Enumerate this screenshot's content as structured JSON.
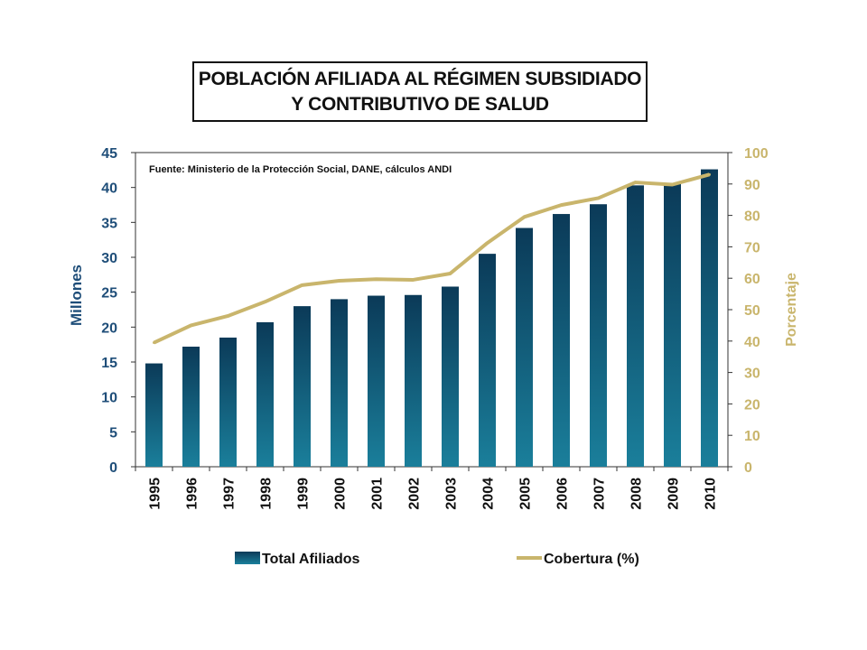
{
  "title_lines": [
    "POBLACIÓN AFILIADA AL RÉGIMEN SUBSIDIADO",
    "Y CONTRIBUTIVO DE SALUD"
  ],
  "colors": {
    "bar_top": "#0b3a58",
    "bar_bottom": "#1a7f9b",
    "line": "#c9b56c",
    "left_axis": "#1f4e79",
    "right_axis": "#c9b56c"
  },
  "chart_data": {
    "type": "bar",
    "title": "POBLACIÓN AFILIADA AL RÉGIMEN SUBSIDIADO Y CONTRIBUTIVO DE SALUD",
    "annotation": "Fuente: Ministerio de la Protección Social, DANE, cálculos ANDI",
    "categories": [
      "1995",
      "1996",
      "1997",
      "1998",
      "1999",
      "2000",
      "2001",
      "2002",
      "2003",
      "2004",
      "2005",
      "2006",
      "2007",
      "2008",
      "2009",
      "2010"
    ],
    "series": [
      {
        "name": "Total Afiliados",
        "type": "bar",
        "axis": "left",
        "values": [
          14.8,
          17.2,
          18.5,
          20.7,
          23.0,
          24.0,
          24.5,
          24.6,
          25.8,
          30.5,
          34.2,
          36.2,
          37.6,
          40.3,
          40.6,
          42.6
        ]
      },
      {
        "name": "Cobertura (%)",
        "type": "line",
        "axis": "right",
        "values": [
          39.5,
          45.0,
          48.0,
          52.5,
          57.8,
          59.2,
          59.7,
          59.5,
          61.5,
          71.2,
          79.5,
          83.3,
          85.5,
          90.5,
          89.8,
          93.0
        ]
      }
    ],
    "left_axis": {
      "label": "Millones",
      "ylim": [
        0,
        45
      ],
      "ticks": [
        "0",
        "5",
        "10",
        "15",
        "20",
        "25",
        "30",
        "35",
        "40",
        "45"
      ]
    },
    "right_axis": {
      "label": "Porcentaje",
      "ylim": [
        0,
        100
      ],
      "ticks": [
        "0",
        "10",
        "20",
        "30",
        "40",
        "50",
        "60",
        "70",
        "80",
        "90",
        "100"
      ]
    },
    "legend": {
      "position": "bottom",
      "items": [
        "Total Afiliados",
        "Cobertura (%)"
      ]
    },
    "grid": false
  }
}
